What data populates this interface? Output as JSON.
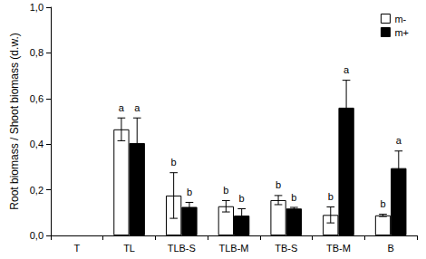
{
  "chart_data": {
    "type": "bar",
    "y_label": "Root biomass / Shoot biomass (d.w.)",
    "categories": [
      "T",
      "TL",
      "TLB-S",
      "TLB-M",
      "TB-S",
      "TB-M",
      "B"
    ],
    "series": [
      {
        "name": "m-",
        "color": "#ffffff",
        "values": [
          null,
          0.465,
          0.175,
          0.128,
          0.155,
          0.09,
          0.088
        ],
        "errors": [
          null,
          0.05,
          0.1,
          0.025,
          0.02,
          0.035,
          0.005
        ],
        "letters": [
          null,
          "a",
          "b",
          "b",
          "b",
          "b",
          "b"
        ]
      },
      {
        "name": "m+",
        "color": "#000000",
        "values": [
          null,
          0.405,
          0.125,
          0.087,
          0.118,
          0.56,
          0.295
        ],
        "errors": [
          null,
          0.11,
          0.02,
          0.03,
          0.005,
          0.12,
          0.075
        ],
        "letters": [
          null,
          "a",
          "b",
          "b",
          "b",
          "a",
          "a"
        ]
      }
    ],
    "ylim": [
      0,
      1
    ],
    "yticks": [
      {
        "value": 0,
        "label": "0,0"
      },
      {
        "value": 0.2,
        "label": "0,2"
      },
      {
        "value": 0.4,
        "label": "0,4"
      },
      {
        "value": 0.6,
        "label": "0,6"
      },
      {
        "value": 0.8,
        "label": "0,8"
      },
      {
        "value": 1,
        "label": "1,0"
      }
    ],
    "grid": false,
    "legend": "upper right"
  }
}
